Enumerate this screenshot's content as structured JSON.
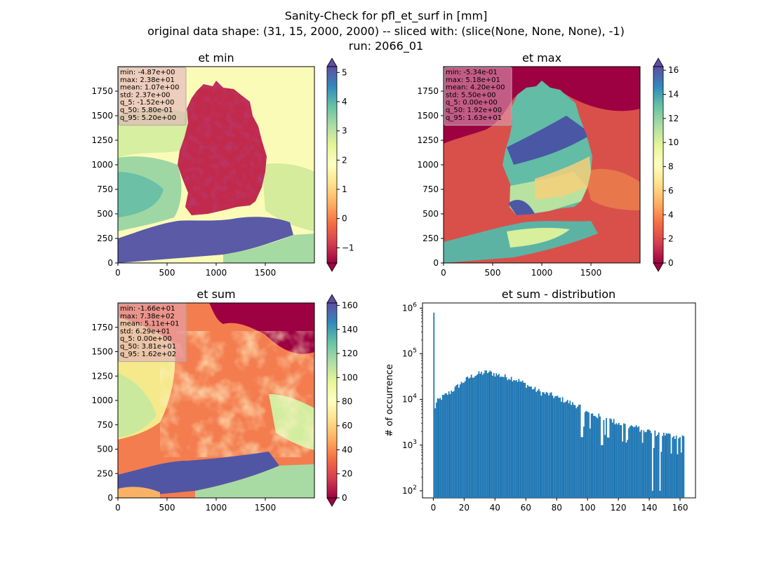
{
  "suptitle": {
    "line1": "Sanity-Check for pfl_et_surf in [mm]",
    "line2": "original data shape: (31, 15, 2000, 2000) -- sliced with: (slice(None, None, None), -1)",
    "line3": "run: 2066_01"
  },
  "chart_data": [
    {
      "type": "heatmap",
      "title": "et min",
      "x_ticks": [
        0,
        500,
        1000,
        1500
      ],
      "y_ticks": [
        0,
        250,
        500,
        750,
        1000,
        1250,
        1500,
        1750
      ],
      "xlim": [
        0,
        2000
      ],
      "ylim": [
        0,
        2000
      ],
      "colormap": "Spectral",
      "colorbar": {
        "ticks": [
          -1,
          0,
          1,
          2,
          3,
          4,
          5
        ],
        "range": [
          -1.52,
          5.2
        ],
        "extend": "both"
      },
      "stats": [
        "min: -4.87e+00",
        "max: 2.38e+01",
        "mean: 1.07e+00",
        "std: 2.37e+00",
        "q_5: -1.52e+00",
        "q_50: 5.80e-01",
        "q_95: 5.20e+00"
      ]
    },
    {
      "type": "heatmap",
      "title": "et max",
      "x_ticks": [
        0,
        500,
        1000,
        1500
      ],
      "y_ticks": [
        0,
        250,
        500,
        750,
        1000,
        1250,
        1500,
        1750
      ],
      "xlim": [
        0,
        2000
      ],
      "ylim": [
        0,
        2000
      ],
      "colormap": "Spectral",
      "colorbar": {
        "ticks": [
          0,
          2,
          4,
          6,
          8,
          10,
          12,
          14,
          16
        ],
        "range": [
          0,
          16.3
        ],
        "extend": "both"
      },
      "stats": [
        "min: -5.34e-01",
        "max: 5.18e+01",
        "mean: 4.20e+00",
        "std: 5.50e+00",
        "q_5: 0.00e+00",
        "q_50: 1.92e+00",
        "q_95: 1.63e+01"
      ]
    },
    {
      "type": "heatmap",
      "title": "et sum",
      "x_ticks": [
        0,
        500,
        1000,
        1500
      ],
      "y_ticks": [
        0,
        250,
        500,
        750,
        1000,
        1250,
        1500,
        1750
      ],
      "xlim": [
        0,
        2000
      ],
      "ylim": [
        0,
        2000
      ],
      "colormap": "Spectral",
      "colorbar": {
        "ticks": [
          0,
          20,
          40,
          60,
          80,
          100,
          120,
          140,
          160
        ],
        "range": [
          0,
          162
        ],
        "extend": "both"
      },
      "stats": [
        "min: -1.66e+01",
        "max: 7.38e+02",
        "mean: 5.11e+01",
        "std: 6.29e+01",
        "q_5: 0.00e+00",
        "q_50: 3.81e+01",
        "q_95: 1.62e+02"
      ]
    },
    {
      "type": "bar",
      "title": "et sum - distribution",
      "ylabel": "# of occurrence",
      "yscale": "log",
      "ylim": [
        70,
        1300000
      ],
      "xlim": [
        -7,
        170
      ],
      "x_ticks": [
        0,
        20,
        40,
        60,
        80,
        100,
        120,
        140,
        160
      ],
      "y_ticks": [
        "10^2",
        "10^3",
        "10^4",
        "10^5",
        "10^6"
      ],
      "bar_color": "#1f77b4",
      "bins": {
        "start": 0,
        "width": 0.81,
        "peak_value": 800000,
        "envelope": [
          [
            0,
            6000
          ],
          [
            1,
            7000
          ],
          [
            2,
            9000
          ],
          [
            5,
            11000
          ],
          [
            10,
            14000
          ],
          [
            15,
            19000
          ],
          [
            20,
            26000
          ],
          [
            25,
            33000
          ],
          [
            30,
            37000
          ],
          [
            35,
            40000
          ],
          [
            40,
            36000
          ],
          [
            45,
            32000
          ],
          [
            50,
            30000
          ],
          [
            55,
            26000
          ],
          [
            60,
            21000
          ],
          [
            65,
            17000
          ],
          [
            70,
            14000
          ],
          [
            75,
            13000
          ],
          [
            80,
            11000
          ],
          [
            85,
            9500
          ],
          [
            90,
            8000
          ],
          [
            95,
            7000
          ],
          [
            100,
            5000
          ],
          [
            105,
            4500
          ],
          [
            110,
            4000
          ],
          [
            115,
            3500
          ],
          [
            120,
            3000
          ],
          [
            125,
            2700
          ],
          [
            130,
            2500
          ],
          [
            135,
            2200
          ],
          [
            140,
            2000
          ],
          [
            145,
            1800
          ],
          [
            150,
            1700
          ],
          [
            155,
            1600
          ],
          [
            160,
            1500
          ],
          [
            162,
            1500
          ]
        ],
        "dips": [
          [
            141.5,
            100
          ],
          [
            146.5,
            100
          ],
          [
            109,
            1000
          ],
          [
            96,
            1500
          ],
          [
            122,
            1200
          ]
        ]
      }
    }
  ]
}
